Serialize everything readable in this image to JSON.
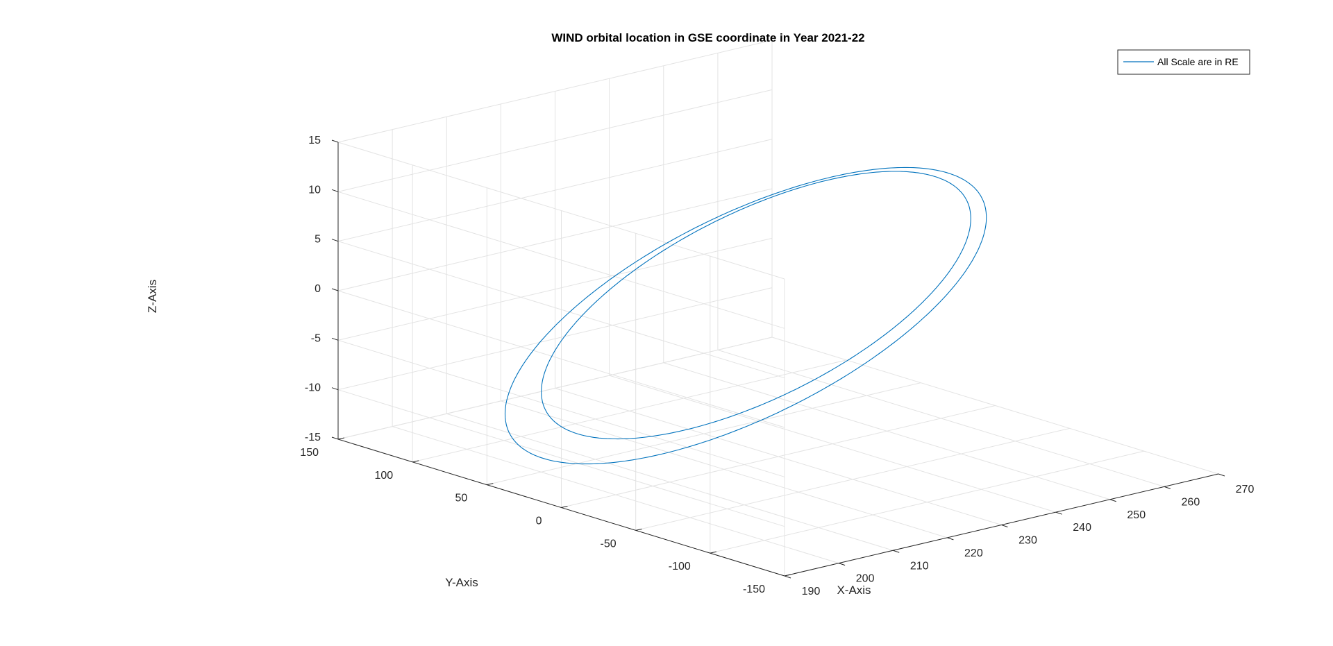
{
  "chart_data": {
    "type": "line",
    "title": "WIND orbital location in GSE coordinate in Year 2021-22",
    "xlabel": "X-Axis",
    "ylabel": "Y-Axis",
    "zlabel": "Z-Axis",
    "xlim": [
      190,
      270
    ],
    "ylim": [
      -150,
      150
    ],
    "zlim": [
      -15,
      15
    ],
    "x_ticks": [
      190,
      200,
      210,
      220,
      230,
      240,
      250,
      260,
      270
    ],
    "y_ticks": [
      -150,
      -100,
      -50,
      0,
      50,
      100,
      150
    ],
    "z_ticks": [
      -15,
      -10,
      -5,
      0,
      5,
      10,
      15
    ],
    "grid": true,
    "legend_position": "top-right",
    "series": [
      {
        "name": "All Scale are in RE",
        "color": "#0072BD",
        "loops": [
          {
            "xc": 224,
            "xr": 32,
            "yc": 0,
            "yr": 112,
            "zc": 0,
            "zr": 11.5,
            "phase": 0.35
          },
          {
            "xc": 227,
            "xr": 28,
            "yc": 4,
            "yr": 102,
            "zc": 0.5,
            "zr": 10.5,
            "phase": 0.35
          }
        ]
      }
    ]
  }
}
